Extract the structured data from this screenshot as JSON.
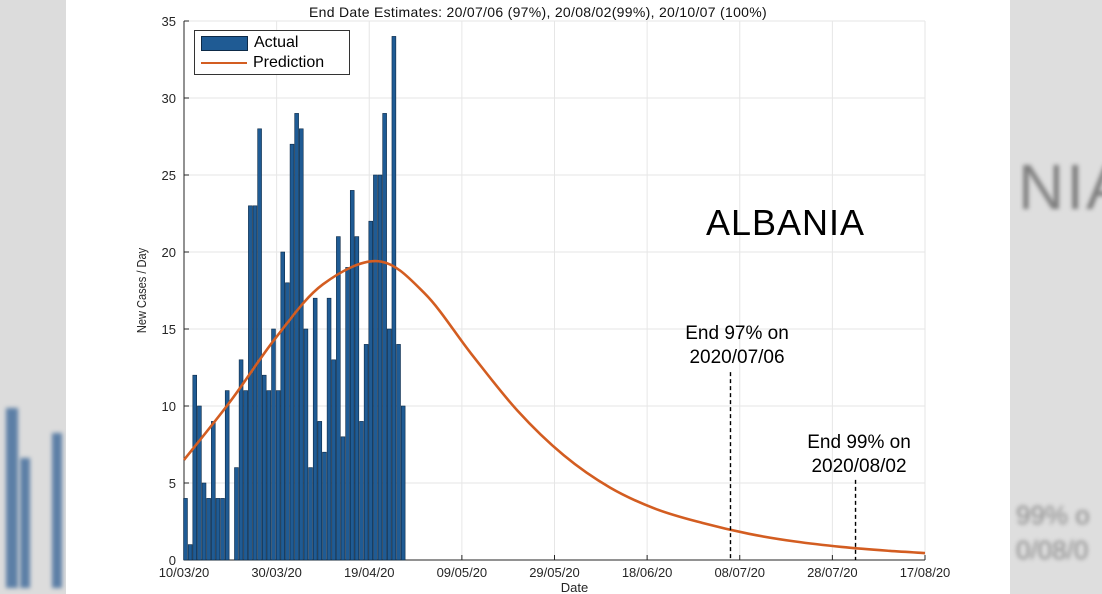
{
  "chart_data": {
    "type": "bar",
    "title": "End Date Estimates: 20/07/06 (97%), 20/08/02(99%), 20/10/07 (100%)",
    "xlabel": "Date",
    "ylabel": "New Cases / Day",
    "ylim": [
      0,
      35
    ],
    "yticks": [
      "0",
      "5",
      "10",
      "15",
      "20",
      "25",
      "30",
      "35"
    ],
    "xticks": [
      "10/03/20",
      "30/03/20",
      "19/04/20",
      "09/05/20",
      "29/05/20",
      "18/06/20",
      "08/07/20",
      "28/07/20",
      "17/08/20"
    ],
    "x_start": "2020-03-10",
    "x_end": "2020-08-17",
    "grid": true,
    "legend": "top-left",
    "series": [
      {
        "name": "Actual",
        "kind": "bar",
        "color": "#1f5b94",
        "start_date": "2020-03-10",
        "values": [
          4,
          1,
          12,
          10,
          5,
          4,
          9,
          4,
          4,
          11,
          0,
          6,
          13,
          11,
          23,
          23,
          28,
          12,
          11,
          15,
          11,
          20,
          18,
          27,
          29,
          28,
          15,
          6,
          17,
          9,
          7,
          17,
          13,
          21,
          8,
          19,
          24,
          21,
          9,
          14,
          22,
          25,
          25,
          29,
          15,
          34,
          14,
          10
        ]
      },
      {
        "name": "Prediction",
        "kind": "line",
        "color": "#d35d21",
        "peak_date": "2020-04-21",
        "peak_value": 19.4,
        "points": [
          [
            "2020-03-10",
            6.5
          ],
          [
            "2020-03-20",
            10.3
          ],
          [
            "2020-03-30",
            14.5
          ],
          [
            "2020-04-09",
            17.9
          ],
          [
            "2020-04-21",
            19.4
          ],
          [
            "2020-05-01",
            17.3
          ],
          [
            "2020-05-11",
            13.4
          ],
          [
            "2020-05-21",
            9.7
          ],
          [
            "2020-05-31",
            6.8
          ],
          [
            "2020-06-10",
            4.7
          ],
          [
            "2020-06-20",
            3.3
          ],
          [
            "2020-06-30",
            2.4
          ],
          [
            "2020-07-10",
            1.7
          ],
          [
            "2020-07-20",
            1.2
          ],
          [
            "2020-07-30",
            0.85
          ],
          [
            "2020-08-09",
            0.6
          ],
          [
            "2020-08-17",
            0.45
          ]
        ]
      }
    ],
    "markers": [
      {
        "date": "2020-07-06",
        "label_line1": "End 97% on",
        "label_line2": "2020/07/06",
        "top_value": 12.2
      },
      {
        "date": "2020-08-02",
        "label_line1": "End 99% on",
        "label_line2": "2020/08/02",
        "top_value": 5.2
      }
    ]
  },
  "country_label": "ALBANIA",
  "legend": {
    "actual": "Actual",
    "prediction": "Prediction"
  },
  "background_ghost": {
    "left_text": "",
    "right_text": "NIA",
    "right_small_1": "99% o",
    "right_small_2": "0/08/0"
  }
}
